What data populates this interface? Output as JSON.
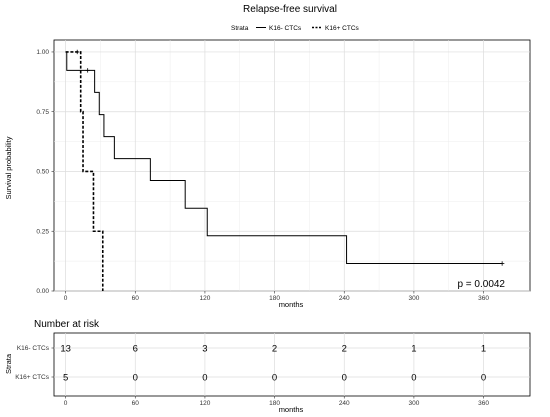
{
  "chart_data": [
    {
      "type": "line",
      "subtype": "kaplan-meier",
      "title": "Relapse-free survival",
      "xlabel": "months",
      "ylabel": "Survival probability",
      "xlim": [
        -10,
        400
      ],
      "ylim": [
        0,
        1.05
      ],
      "x_ticks": [
        "0",
        "60",
        "120",
        "180",
        "240",
        "300",
        "360"
      ],
      "y_ticks": [
        "0.00",
        "0.25",
        "0.50",
        "0.75",
        "1.00"
      ],
      "grid": true,
      "legend": {
        "title": "Strata",
        "placement": "top"
      },
      "annotation": "p = 0.0042",
      "series": [
        {
          "name": "K16- CTCs",
          "color": "#000000",
          "line_style": "solid",
          "steps": [
            [
              0,
              1.0
            ],
            [
              1,
              0.923
            ],
            [
              25,
              0.831
            ],
            [
              29,
              0.738
            ],
            [
              33,
              0.646
            ],
            [
              42,
              0.554
            ],
            [
              73,
              0.462
            ],
            [
              103,
              0.346
            ],
            [
              122,
              0.231
            ],
            [
              242,
              0.115
            ],
            [
              376,
              0.115
            ]
          ],
          "censored": [
            [
              19,
              0.923
            ],
            [
              376,
              0.115
            ]
          ]
        },
        {
          "name": "K16+ CTCs",
          "color": "#000000",
          "line_style": "dashed",
          "steps": [
            [
              0,
              1.0
            ],
            [
              13,
              0.75
            ],
            [
              15,
              0.5
            ],
            [
              24,
              0.25
            ],
            [
              32,
              0.0
            ]
          ],
          "censored": [
            [
              10,
              1.0
            ]
          ]
        }
      ]
    },
    {
      "type": "table",
      "title": "Number at risk",
      "xlabel": "months",
      "ylabel": "Strata",
      "time_points": [
        0,
        60,
        120,
        180,
        240,
        300,
        360
      ],
      "time_labels": [
        "0",
        "60",
        "120",
        "180",
        "240",
        "300",
        "360"
      ],
      "rows": [
        {
          "name": "K16- CTCs",
          "values": [
            "13",
            "6",
            "3",
            "2",
            "2",
            "1",
            "1"
          ]
        },
        {
          "name": "K16+ CTCs",
          "values": [
            "5",
            "0",
            "0",
            "0",
            "0",
            "0",
            "0"
          ]
        }
      ]
    }
  ]
}
